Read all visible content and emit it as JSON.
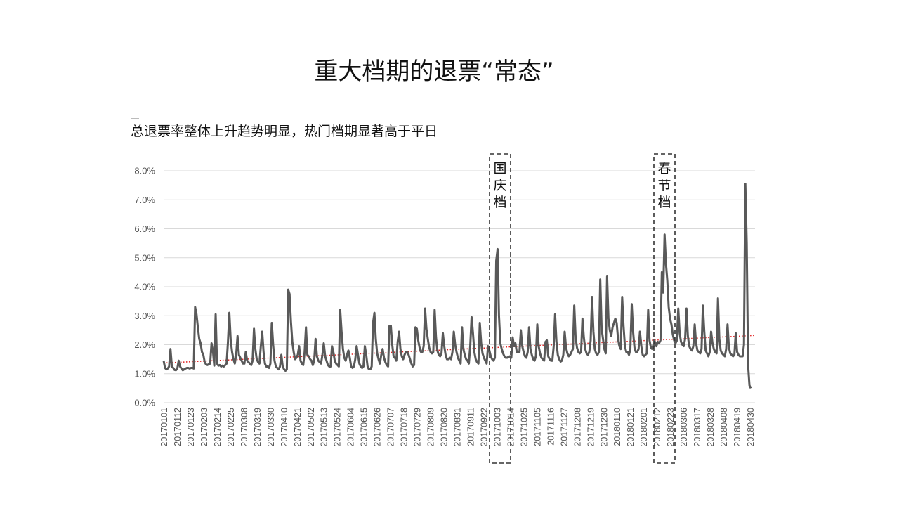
{
  "page": {
    "title": "重大档期的退票“常态”",
    "subtitle": "总退票率整体上升趋势明显，热门档期显著高于平日"
  },
  "chart_data": {
    "type": "line",
    "title": "",
    "xlabel": "",
    "ylabel": "",
    "ylim": [
      0,
      0.08
    ],
    "y_ticks": [
      "0.0%",
      "1.0%",
      "2.0%",
      "3.0%",
      "4.0%",
      "5.0%",
      "6.0%",
      "7.0%",
      "8.0%"
    ],
    "x_tick_labels": [
      "20170101",
      "20170112",
      "20170123",
      "20170203",
      "20170214",
      "20170225",
      "20170308",
      "20170319",
      "20170330",
      "20170410",
      "20170421",
      "20170502",
      "20170513",
      "20170524",
      "20170604",
      "20170615",
      "20170626",
      "20170707",
      "20170718",
      "20170729",
      "20170809",
      "20170820",
      "20170831",
      "20170911",
      "20170922",
      "20171003",
      "20171014",
      "20171025",
      "20171105",
      "20171116",
      "20171127",
      "20171208",
      "20171219",
      "20171230",
      "20180110",
      "20180121",
      "20180201",
      "20180212",
      "20180223",
      "20180306",
      "20180317",
      "20180328",
      "20180408",
      "20180419",
      "20180430"
    ],
    "grid": true,
    "legend": "none",
    "colors": {
      "series": "#595959",
      "trend": "#e02020",
      "grid": "#d9d9d9",
      "box": "#333333"
    },
    "series": [
      {
        "name": "",
        "values_note_unused": "",
        "values": [
          0.0145,
          0.012,
          0.0115,
          0.0118,
          0.0125,
          0.0185,
          0.0125,
          0.012,
          0.0113,
          0.0112,
          0.0118,
          0.0145,
          0.0125,
          0.0118,
          0.0112,
          0.0115,
          0.0118,
          0.012,
          0.012,
          0.0118,
          0.012,
          0.012,
          0.0118,
          0.033,
          0.0305,
          0.026,
          0.022,
          0.0205,
          0.0175,
          0.0165,
          0.014,
          0.0132,
          0.013,
          0.0133,
          0.0135,
          0.0205,
          0.018,
          0.0128,
          0.0305,
          0.0135,
          0.0128,
          0.013,
          0.0125,
          0.0128,
          0.0125,
          0.013,
          0.0135,
          0.021,
          0.031,
          0.0215,
          0.0175,
          0.015,
          0.0135,
          0.0165,
          0.023,
          0.0165,
          0.0155,
          0.0145,
          0.0135,
          0.0135,
          0.0175,
          0.0145,
          0.014,
          0.0135,
          0.013,
          0.0145,
          0.0255,
          0.0185,
          0.015,
          0.014,
          0.0135,
          0.0195,
          0.0245,
          0.0175,
          0.0135,
          0.0125,
          0.0125,
          0.012,
          0.0135,
          0.0275,
          0.02,
          0.0145,
          0.0125,
          0.012,
          0.0115,
          0.0125,
          0.0165,
          0.0125,
          0.0115,
          0.011,
          0.0115,
          0.039,
          0.0375,
          0.028,
          0.021,
          0.0175,
          0.015,
          0.0155,
          0.0165,
          0.0195,
          0.0145,
          0.0135,
          0.013,
          0.0175,
          0.026,
          0.0165,
          0.016,
          0.015,
          0.0145,
          0.013,
          0.0145,
          0.022,
          0.016,
          0.0145,
          0.014,
          0.0135,
          0.0165,
          0.0205,
          0.016,
          0.0145,
          0.013,
          0.0125,
          0.0125,
          0.0195,
          0.0175,
          0.0145,
          0.0135,
          0.013,
          0.0125,
          0.032,
          0.0245,
          0.0185,
          0.0155,
          0.0145,
          0.0165,
          0.018,
          0.0155,
          0.0125,
          0.012,
          0.0125,
          0.015,
          0.0195,
          0.0165,
          0.0135,
          0.0125,
          0.012,
          0.0125,
          0.0195,
          0.0165,
          0.0125,
          0.0115,
          0.0115,
          0.0125,
          0.0275,
          0.031,
          0.022,
          0.017,
          0.015,
          0.0135,
          0.0165,
          0.0185,
          0.0155,
          0.014,
          0.013,
          0.0125,
          0.0265,
          0.0265,
          0.02,
          0.016,
          0.0155,
          0.0145,
          0.021,
          0.0245,
          0.0185,
          0.016,
          0.015,
          0.0165,
          0.0175,
          0.0175,
          0.0165,
          0.015,
          0.0135,
          0.0125,
          0.013,
          0.026,
          0.0255,
          0.0215,
          0.019,
          0.0175,
          0.0175,
          0.0195,
          0.0325,
          0.0255,
          0.022,
          0.019,
          0.0175,
          0.017,
          0.0175,
          0.032,
          0.0225,
          0.018,
          0.0165,
          0.016,
          0.017,
          0.024,
          0.0195,
          0.0165,
          0.015,
          0.015,
          0.0155,
          0.015,
          0.0175,
          0.0245,
          0.02,
          0.0175,
          0.0155,
          0.0145,
          0.0135,
          0.026,
          0.0185,
          0.0165,
          0.015,
          0.0145,
          0.0135,
          0.0195,
          0.0295,
          0.024,
          0.0175,
          0.015,
          0.014,
          0.0135,
          0.0275,
          0.0205,
          0.017,
          0.0155,
          0.0145,
          0.0135,
          0.0195,
          0.018,
          0.016,
          0.015,
          0.0145,
          0.0155,
          0.049,
          0.053,
          0.03,
          0.0205,
          0.0185,
          0.017,
          0.016,
          0.0155,
          0.0155,
          0.0158,
          0.016,
          0.0155,
          0.0225,
          0.0195,
          0.0205,
          0.0175,
          0.0175,
          0.0175,
          0.025,
          0.0195,
          0.0175,
          0.016,
          0.0155,
          0.0175,
          0.026,
          0.0185,
          0.0165,
          0.015,
          0.0145,
          0.016,
          0.027,
          0.0195,
          0.017,
          0.0155,
          0.015,
          0.0145,
          0.021,
          0.0215,
          0.016,
          0.015,
          0.0145,
          0.0145,
          0.0195,
          0.0305,
          0.021,
          0.0165,
          0.015,
          0.0142,
          0.0145,
          0.0165,
          0.0245,
          0.019,
          0.017,
          0.016,
          0.0165,
          0.0175,
          0.0185,
          0.0335,
          0.0225,
          0.019,
          0.0175,
          0.017,
          0.0175,
          0.029,
          0.0225,
          0.0185,
          0.017,
          0.0165,
          0.0175,
          0.0215,
          0.0365,
          0.0245,
          0.0185,
          0.017,
          0.0165,
          0.0175,
          0.0425,
          0.0255,
          0.022,
          0.0185,
          0.017,
          0.0435,
          0.029,
          0.025,
          0.023,
          0.026,
          0.0275,
          0.029,
          0.0275,
          0.022,
          0.0195,
          0.0185,
          0.0365,
          0.0265,
          0.0195,
          0.0175,
          0.0175,
          0.0165,
          0.0185,
          0.034,
          0.0245,
          0.019,
          0.0175,
          0.0175,
          0.0185,
          0.0245,
          0.0195,
          0.0165,
          0.016,
          0.0165,
          0.017,
          0.032,
          0.0215,
          0.019,
          0.0185,
          0.0195,
          0.021,
          0.0195,
          0.021,
          0.0205,
          0.0215,
          0.045,
          0.038,
          0.058,
          0.048,
          0.042,
          0.033,
          0.029,
          0.027,
          0.0235,
          0.0215,
          0.0205,
          0.0215,
          0.0325,
          0.024,
          0.021,
          0.02,
          0.0195,
          0.022,
          0.0325,
          0.023,
          0.0195,
          0.0185,
          0.018,
          0.0195,
          0.027,
          0.0205,
          0.018,
          0.0175,
          0.017,
          0.0185,
          0.0335,
          0.0245,
          0.018,
          0.017,
          0.016,
          0.0175,
          0.0245,
          0.0205,
          0.0185,
          0.0175,
          0.017,
          0.036,
          0.022,
          0.018,
          0.017,
          0.0165,
          0.016,
          0.0185,
          0.027,
          0.019,
          0.017,
          0.0165,
          0.016,
          0.0165,
          0.024,
          0.0175,
          0.0165,
          0.016,
          0.016,
          0.016,
          0.02,
          0.0755,
          0.055,
          0.013,
          0.006,
          0.005
        ]
      },
      {
        "name": "",
        "style": "trend",
        "start": 0.0137,
        "end": 0.0232
      }
    ],
    "annotations": [
      {
        "label": [
          "国",
          "庆",
          "档"
        ],
        "from": "20170928",
        "to": "20171012"
      },
      {
        "label": [
          "春",
          "节",
          "档"
        ],
        "from": "20180212",
        "to": "20180226"
      }
    ]
  }
}
